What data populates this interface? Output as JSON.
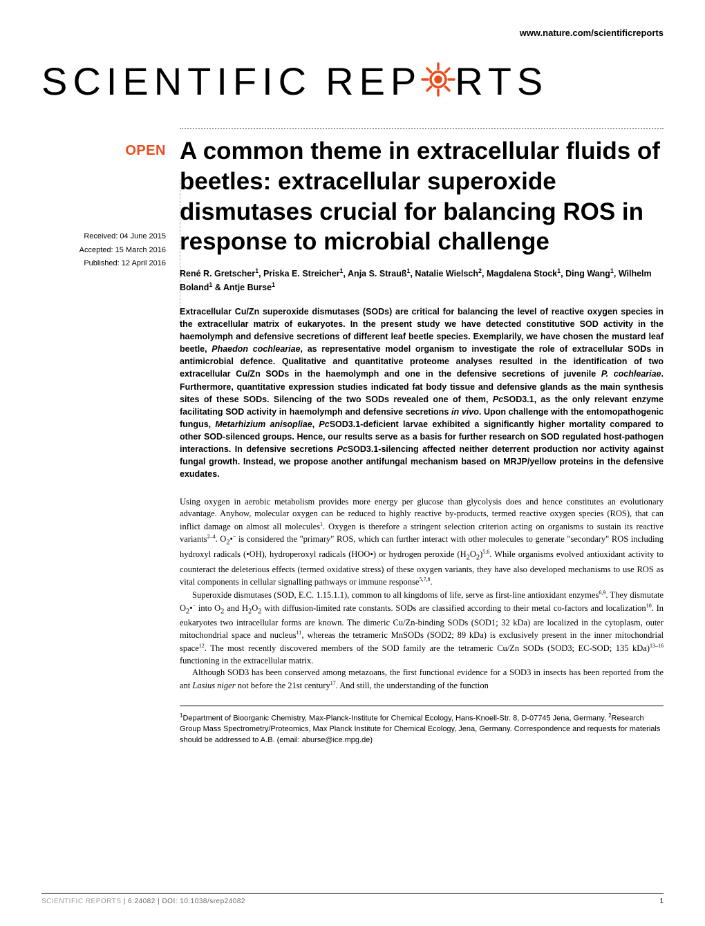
{
  "header": {
    "url": "www.nature.com/scientificreports"
  },
  "logo": {
    "part1": "SCIENTIFIC",
    "part2": "REP",
    "part3": "RTS",
    "gear_color": "#e84e1c"
  },
  "badges": {
    "open": "OPEN"
  },
  "dates": {
    "received": "Received: 04 June 2015",
    "accepted": "Accepted: 15 March 2016",
    "published": "Published: 12 April 2016"
  },
  "article": {
    "title": "A common theme in extracellular fluids of beetles: extracellular superoxide dismutases crucial for balancing ROS in response to microbial challenge",
    "authors_html": "René R. Gretscher<sup>1</sup>, Priska E. Streicher<sup>1</sup>, Anja S. Strauß<sup>1</sup>, Natalie Wielsch<sup>2</sup>, Magdalena Stock<sup>1</sup>, Ding Wang<sup>1</sup>, Wilhelm Boland<sup>1</sup> & Antje Burse<sup>1</sup>",
    "abstract_html": "Extracellular Cu/Zn superoxide dismutases (SODs) are critical for balancing the level of reactive oxygen species in the extracellular matrix of eukaryotes. In the present study we have detected constitutive SOD activity in the haemolymph and defensive secretions of different leaf beetle species. Exemplarily, we have chosen the mustard leaf beetle, <em>Phaedon cochleariae</em>, as representative model organism to investigate the role of extracellular SODs in antimicrobial defence. Qualitative and quantitative proteome analyses resulted in the identification of two extracellular Cu/Zn SODs in the haemolymph and one in the defensive secretions of juvenile <em>P. cochleariae</em>. Furthermore, quantitative expression studies indicated fat body tissue and defensive glands as the main synthesis sites of these SODs. Silencing of the two SODs revealed one of them, <em>Pc</em>SOD3.1, as the only relevant enzyme facilitating SOD activity in haemolymph and defensive secretions <em>in vivo</em>. Upon challenge with the entomopathogenic fungus, <em>Metarhizium anisopliae</em>, <em>Pc</em>SOD3.1-deficient larvae exhibited a significantly higher mortality compared to other SOD-silenced groups. Hence, our results serve as a basis for further research on SOD regulated host-pathogen interactions. In defensive secretions <em>Pc</em>SOD3.1-silencing affected neither deterrent production nor activity against fungal growth. Instead, we propose another antifungal mechanism based on MRJP/yellow proteins in the defensive exudates.",
    "body_paragraphs": [
      "Using oxygen in aerobic metabolism provides more energy per glucose than glycolysis does and hence constitutes an evolutionary advantage. Anyhow, molecular oxygen can be reduced to highly reactive by-products, termed reactive oxygen species (ROS), that can inflict damage on almost all molecules<sup>1</sup>. Oxygen is therefore a stringent selection criterion acting on organisms to sustain its reactive variants<sup>2–4</sup>. O<sub>2</sub>•<sup>−</sup> is considered the \"primary\" ROS, which can further interact with other molecules to generate \"secondary\" ROS including hydroxyl radicals (•OH), hydroperoxyl radicals (HOO•) or hydrogen peroxide (H<sub>2</sub>O<sub>2</sub>)<sup>5,6</sup>. While organisms evolved antioxidant activity to counteract the deleterious effects (termed oxidative stress) of these oxygen variants, they have also developed mechanisms to use ROS as vital components in cellular signalling pathways or immune response<sup>5,7,8</sup>.",
      "Superoxide dismutases (SOD, E.C. 1.15.1.1), common to all kingdoms of life, serve as first-line antioxidant enzymes<sup>6,9</sup>. They dismutate O<sub>2</sub>•<sup>−</sup> into O<sub>2</sub> and H<sub>2</sub>O<sub>2</sub> with diffusion-limited rate constants. SODs are classified according to their metal co-factors and localization<sup>10</sup>. In eukaryotes two intracellular forms are known. The dimeric Cu/Zn-binding SODs (SOD1; 32 kDa) are localized in the cytoplasm, outer mitochondrial space and nucleus<sup>11</sup>, whereas the tetrameric MnSODs (SOD2; 89 kDa) is exclusively present in the inner mitochondrial space<sup>12</sup>. The most recently discovered members of the SOD family are the tetrameric Cu/Zn SODs (SOD3; EC-SOD; 135 kDa)<sup>13–16</sup> functioning in the extracellular matrix.",
      "Although SOD3 has been conserved among metazoans, the first functional evidence for a SOD3 in insects has been reported from the ant <em>Lasius niger</em> not before the 21st century<sup>17</sup>. And still, the understanding of the function"
    ],
    "affiliations_html": "<sup>1</sup>Department of Bioorganic Chemistry, Max-Planck-Institute for Chemical Ecology, Hans-Knoell-Str. 8, D-07745 Jena, Germany. <sup>2</sup>Research Group Mass Spectrometry/Proteomics, Max Planck Institute for Chemical Ecology, Jena, Germany. Correspondence and requests for materials should be addressed to A.B. (email: aburse@ice.mpg.de)"
  },
  "footer": {
    "journal": "SCIENTIFIC REPORTS",
    "citation": " | 6:24082 | DOI: 10.1038/srep24082",
    "page": "1"
  },
  "colors": {
    "accent": "#e84e1c",
    "text": "#000000",
    "muted": "#999999"
  }
}
